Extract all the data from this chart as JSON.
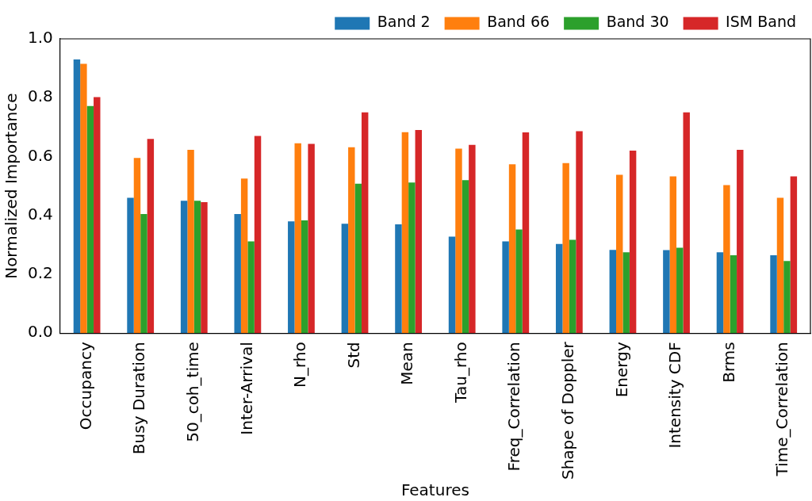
{
  "chart_data": {
    "type": "bar",
    "xlabel": "Features",
    "ylabel": "Normalized Importance",
    "categories": [
      "Occupancy",
      "Busy Duration",
      "50_coh_time",
      "Inter-Arrival",
      "N_rho",
      "Std",
      "Mean",
      "Tau_rho",
      "Freq_Correlation",
      "Shape of Doppler",
      "Energy",
      "Intensity CDF",
      "Brms",
      "Time_Correlation"
    ],
    "series": [
      {
        "name": "Band 2",
        "color": "#1f77b4",
        "values": [
          0.93,
          0.46,
          0.45,
          0.405,
          0.38,
          0.372,
          0.37,
          0.328,
          0.312,
          0.303,
          0.283,
          0.282,
          0.275,
          0.265
        ]
      },
      {
        "name": "Band 66",
        "color": "#ff7f0e",
        "values": [
          0.915,
          0.595,
          0.623,
          0.525,
          0.645,
          0.632,
          0.683,
          0.627,
          0.574,
          0.578,
          0.538,
          0.533,
          0.503,
          0.46
        ]
      },
      {
        "name": "Band 30",
        "color": "#2ca02c",
        "values": [
          0.772,
          0.405,
          0.45,
          0.312,
          0.383,
          0.508,
          0.512,
          0.52,
          0.352,
          0.317,
          0.275,
          0.29,
          0.265,
          0.245
        ]
      },
      {
        "name": "ISM Band",
        "color": "#d62728",
        "values": [
          0.802,
          0.66,
          0.445,
          0.67,
          0.643,
          0.75,
          0.69,
          0.64,
          0.682,
          0.686,
          0.62,
          0.75,
          0.623,
          0.533
        ]
      }
    ],
    "ylim": [
      0,
      1
    ],
    "yticks": [
      {
        "value": 0,
        "label": "0.0"
      },
      0.2,
      0.4,
      0.6,
      0.8,
      {
        "value": 1,
        "label": "1.0"
      }
    ],
    "grid": false,
    "legend": "top right"
  }
}
